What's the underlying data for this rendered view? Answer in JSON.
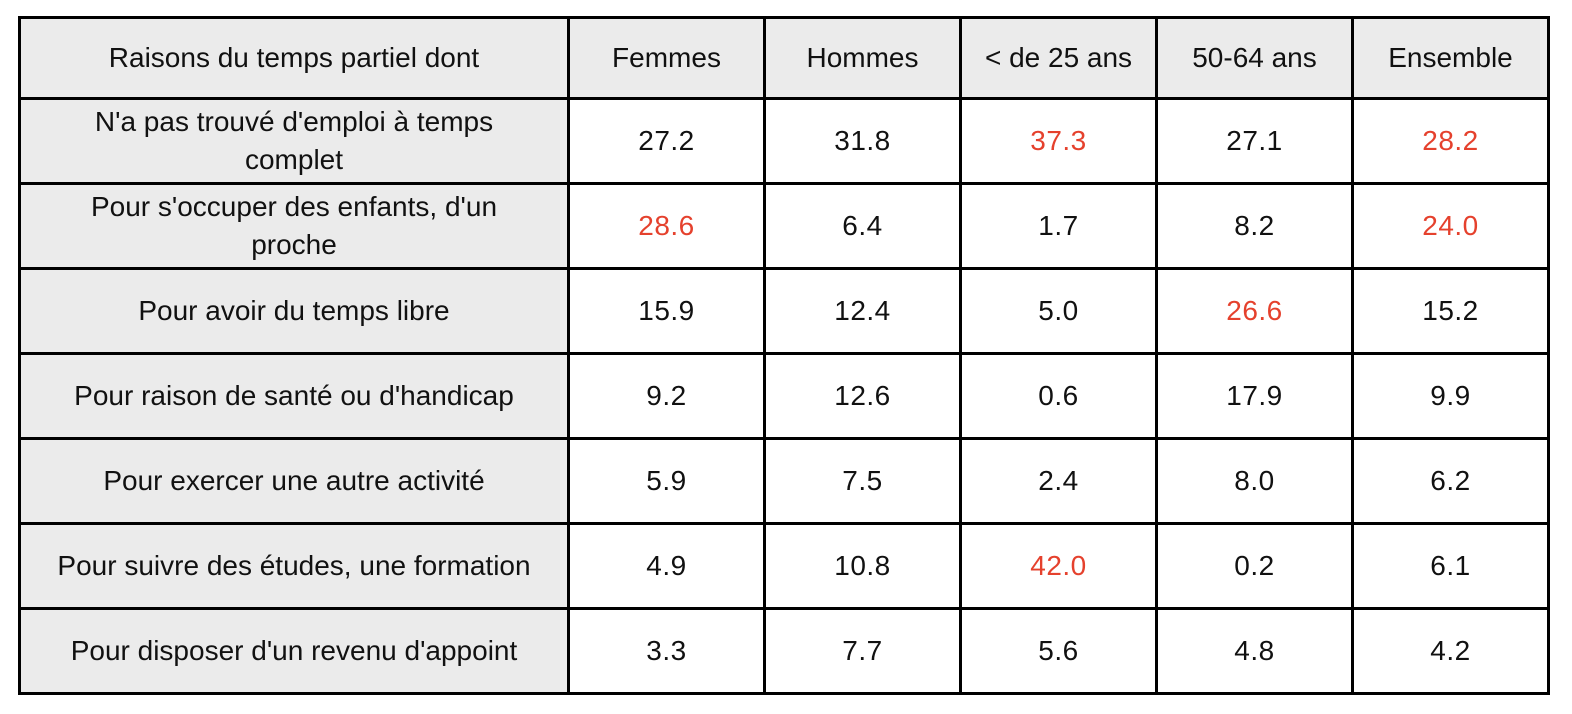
{
  "colors": {
    "highlight_red": "#e5412d",
    "cell_gray": "#ebebeb",
    "border_black": "#000000",
    "text_black": "#111111"
  },
  "chart_data": {
    "type": "table",
    "title": "Raisons du temps partiel dont",
    "header": [
      "Raisons du temps partiel dont",
      "Femmes",
      "Hommes",
      "< de 25 ans",
      "50-64 ans",
      "Ensemble"
    ],
    "rows": [
      {
        "label": "N'a pas trouvé d'emploi à temps\ncomplet",
        "values": [
          "27.2",
          "31.8",
          "37.3",
          "27.1",
          "28.2"
        ],
        "red_columns": [
          2,
          4
        ]
      },
      {
        "label": "Pour s'occuper des enfants, d'un\nproche",
        "values": [
          "28.6",
          "6.4",
          "1.7",
          "8.2",
          "24.0"
        ],
        "red_columns": [
          0,
          4
        ]
      },
      {
        "label": "Pour avoir du temps libre",
        "values": [
          "15.9",
          "12.4",
          "5.0",
          "26.6",
          "15.2"
        ],
        "red_columns": [
          3
        ]
      },
      {
        "label": "Pour raison de santé ou d'handicap",
        "values": [
          "9.2",
          "12.6",
          "0.6",
          "17.9",
          "9.9"
        ],
        "red_columns": []
      },
      {
        "label": "Pour exercer une autre activité",
        "values": [
          "5.9",
          "7.5",
          "2.4",
          "8.0",
          "6.2"
        ],
        "red_columns": []
      },
      {
        "label": "Pour suivre des études, une formation",
        "values": [
          "4.9",
          "10.8",
          "42.0",
          "0.2",
          "6.1"
        ],
        "red_columns": [
          2
        ]
      },
      {
        "label": "Pour disposer d'un revenu d'appoint",
        "values": [
          "3.3",
          "7.7",
          "5.6",
          "4.8",
          "4.2"
        ],
        "red_columns": []
      }
    ]
  }
}
